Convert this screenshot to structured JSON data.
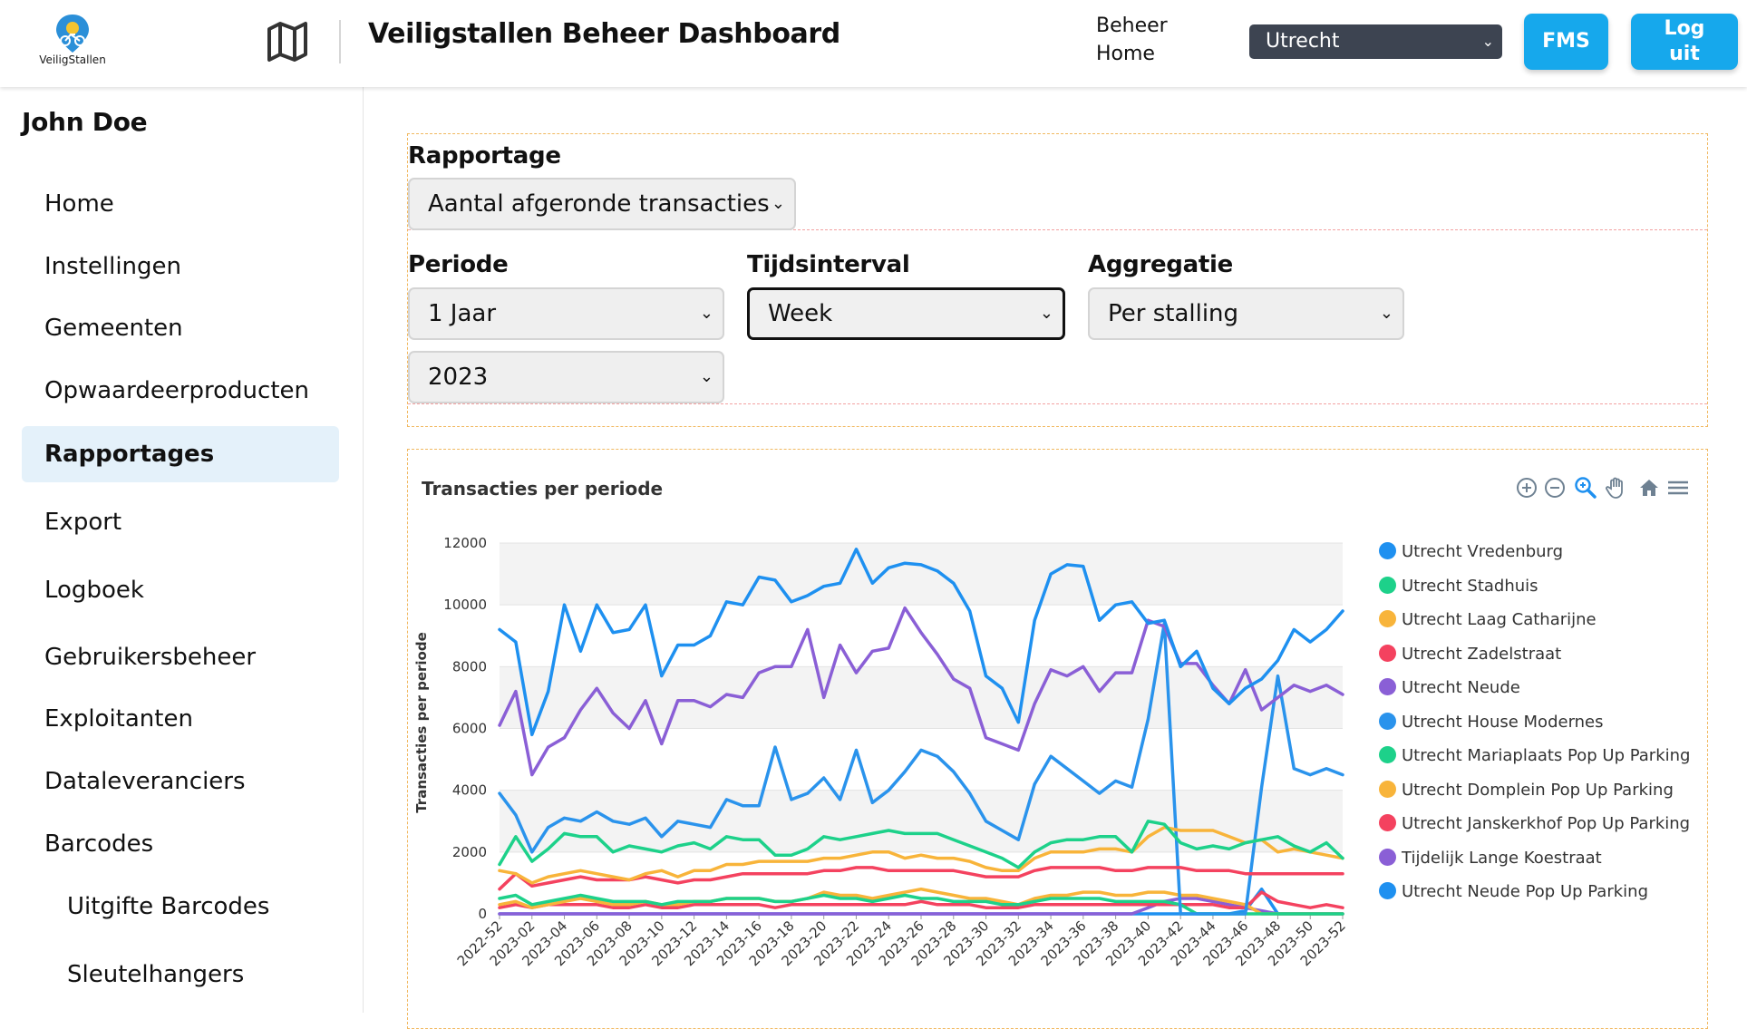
{
  "header": {
    "logo_text": "VeiligStallen",
    "title": "Veiligstallen Beheer Dashboard",
    "beheer_home_line1": "Beheer",
    "beheer_home_line2": "Home",
    "site_selected": "Utrecht",
    "fms_label": "FMS",
    "logout_line1": "Log",
    "logout_line2": "uit"
  },
  "sidebar": {
    "username": "John Doe",
    "items": [
      {
        "label": "Home"
      },
      {
        "label": "Instellingen"
      },
      {
        "label": "Gemeenten"
      },
      {
        "label": "Opwaardeerproducten"
      },
      {
        "label": "Rapportages",
        "active": true
      },
      {
        "label": "Export"
      },
      {
        "label": "Logboek"
      },
      {
        "label": "Gebruikersbeheer"
      },
      {
        "label": "Exploitanten"
      },
      {
        "label": "Dataleveranciers"
      },
      {
        "label": "Barcodes"
      },
      {
        "label": "Uitgifte Barcodes",
        "sub": true
      },
      {
        "label": "Sleutelhangers",
        "sub": true
      }
    ]
  },
  "filters": {
    "rapportage_label": "Rapportage",
    "rapportage_value": "Aantal afgeronde transacties",
    "periode_label": "Periode",
    "periode_value": "1 Jaar",
    "jaar_value": "2023",
    "tijdsinterval_label": "Tijdsinterval",
    "tijdsinterval_value": "Week",
    "aggregatie_label": "Aggregatie",
    "aggregatie_value": "Per stalling"
  },
  "toolbar_icons": [
    "zoom-in-icon",
    "zoom-out-icon",
    "selection-zoom-icon",
    "pan-icon",
    "reset-home-icon",
    "menu-icon"
  ],
  "chart_data": {
    "type": "line",
    "title": "Transacties per periode",
    "ylabel": "Transacties per periode",
    "xlabel": "",
    "ylim": [
      0,
      12000
    ],
    "yticks": [
      0,
      2000,
      4000,
      6000,
      8000,
      10000,
      12000
    ],
    "grid": true,
    "legend_position": "right",
    "x": [
      "2022-52",
      "2023-01",
      "2023-02",
      "2023-03",
      "2023-04",
      "2023-05",
      "2023-06",
      "2023-07",
      "2023-08",
      "2023-09",
      "2023-10",
      "2023-11",
      "2023-12",
      "2023-13",
      "2023-14",
      "2023-15",
      "2023-16",
      "2023-17",
      "2023-18",
      "2023-19",
      "2023-20",
      "2023-21",
      "2023-22",
      "2023-23",
      "2023-24",
      "2023-25",
      "2023-26",
      "2023-27",
      "2023-28",
      "2023-29",
      "2023-30",
      "2023-31",
      "2023-32",
      "2023-33",
      "2023-34",
      "2023-35",
      "2023-36",
      "2023-37",
      "2023-38",
      "2023-39",
      "2023-40",
      "2023-41",
      "2023-42",
      "2023-43",
      "2023-44",
      "2023-45",
      "2023-46",
      "2023-47",
      "2023-48",
      "2023-49",
      "2023-50",
      "2023-51",
      "2023-52"
    ],
    "xticks": [
      "2022-52",
      "2023-02",
      "2023-04",
      "2023-06",
      "2023-08",
      "2023-10",
      "2023-12",
      "2023-14",
      "2023-16",
      "2023-18",
      "2023-20",
      "2023-22",
      "2023-24",
      "2023-26",
      "2023-28",
      "2023-30",
      "2023-32",
      "2023-34",
      "2023-36",
      "2023-38",
      "2023-40",
      "2023-42",
      "2023-44",
      "2023-46",
      "2023-48",
      "2023-50",
      "2023-52"
    ],
    "series": [
      {
        "name": "Utrecht Vredenburg",
        "color": "#1e90f0",
        "values": [
          9200,
          8800,
          5800,
          7200,
          10000,
          8500,
          10000,
          9100,
          9200,
          10000,
          7700,
          8700,
          8700,
          9000,
          10100,
          10000,
          10900,
          10800,
          10100,
          10300,
          10600,
          10700,
          11800,
          10700,
          11200,
          11350,
          11300,
          11100,
          10700,
          9800,
          7700,
          7300,
          6200,
          9500,
          11000,
          11300,
          11250,
          9500,
          10000,
          10100,
          9400,
          9500,
          8000,
          8500,
          7300,
          6800,
          7300,
          7600,
          8200,
          9200,
          8800,
          9200,
          9800
        ]
      },
      {
        "name": "Utrecht Stadhuis",
        "color": "#1dd18a",
        "values": [
          1600,
          2500,
          1700,
          2100,
          2600,
          2500,
          2500,
          2000,
          2200,
          2100,
          2000,
          2200,
          2300,
          2100,
          2500,
          2400,
          2400,
          1900,
          1900,
          2100,
          2500,
          2400,
          2500,
          2600,
          2700,
          2600,
          2600,
          2600,
          2400,
          2200,
          2000,
          1800,
          1500,
          2000,
          2300,
          2400,
          2400,
          2500,
          2500,
          2000,
          3000,
          2900,
          2300,
          2100,
          2200,
          2100,
          2300,
          2400,
          2500,
          2200,
          2000,
          2300,
          1800
        ]
      },
      {
        "name": "Utrecht Laag Catharijne",
        "color": "#f8b43a",
        "values": [
          1400,
          1300,
          1000,
          1200,
          1300,
          1400,
          1300,
          1200,
          1100,
          1300,
          1400,
          1200,
          1400,
          1400,
          1600,
          1600,
          1700,
          1700,
          1700,
          1700,
          1800,
          1800,
          1900,
          2000,
          2000,
          1800,
          1900,
          1800,
          1800,
          1700,
          1500,
          1400,
          1400,
          1800,
          2000,
          2000,
          2000,
          2100,
          2100,
          2000,
          2500,
          2800,
          2700,
          2700,
          2700,
          2500,
          2300,
          2400,
          2000,
          2100,
          2000,
          1900,
          1800
        ]
      },
      {
        "name": "Utrecht Zadelstraat",
        "color": "#f4425f",
        "values": [
          800,
          1300,
          900,
          1000,
          1100,
          1200,
          1100,
          1100,
          1100,
          1200,
          1100,
          1000,
          1100,
          1100,
          1200,
          1300,
          1300,
          1300,
          1300,
          1300,
          1400,
          1400,
          1500,
          1500,
          1400,
          1400,
          1400,
          1400,
          1400,
          1300,
          1200,
          1200,
          1200,
          1400,
          1500,
          1500,
          1500,
          1500,
          1400,
          1400,
          1500,
          1500,
          1500,
          1400,
          1400,
          1400,
          1300,
          1300,
          1300,
          1300,
          1300,
          1300,
          1300
        ]
      },
      {
        "name": "Utrecht Neude",
        "color": "#8a5fd6",
        "values": [
          6100,
          7200,
          4500,
          5400,
          5700,
          6600,
          7300,
          6500,
          6000,
          6900,
          5500,
          6900,
          6900,
          6700,
          7100,
          7000,
          7800,
          8000,
          8000,
          9200,
          7000,
          8700,
          7800,
          8500,
          8600,
          9900,
          9100,
          8400,
          7600,
          7300,
          5700,
          5500,
          5300,
          6800,
          7900,
          7700,
          8000,
          7200,
          7800,
          7800,
          9500,
          9300,
          8100,
          8100,
          7400,
          6800,
          7900,
          6600,
          7000,
          7400,
          7200,
          7400,
          7100
        ]
      },
      {
        "name": "Utrecht House Modernes",
        "color": "#2a93ec",
        "values": [
          3900,
          3200,
          2000,
          2800,
          3100,
          3000,
          3300,
          3000,
          2900,
          3100,
          2500,
          3000,
          2900,
          2800,
          3700,
          3500,
          3500,
          5400,
          3700,
          3900,
          4400,
          3700,
          5300,
          3600,
          4000,
          4600,
          5300,
          5100,
          4600,
          3900,
          3000,
          2700,
          2400,
          4200,
          5100,
          4700,
          4300,
          3900,
          4300,
          4100,
          6300,
          9400,
          0,
          0,
          0,
          0,
          0,
          4100,
          7700,
          4700,
          4500,
          4700,
          4500
        ]
      },
      {
        "name": "Utrecht Mariaplaats Pop Up Parking",
        "color": "#1dd18a",
        "values": [
          500,
          600,
          300,
          400,
          500,
          600,
          500,
          400,
          400,
          400,
          300,
          400,
          400,
          400,
          500,
          500,
          500,
          400,
          400,
          500,
          600,
          500,
          500,
          400,
          500,
          600,
          500,
          500,
          400,
          400,
          400,
          300,
          300,
          400,
          500,
          500,
          500,
          500,
          400,
          400,
          400,
          400,
          300,
          0,
          0,
          0,
          0,
          0,
          0,
          0,
          0,
          0,
          0
        ]
      },
      {
        "name": "Utrecht Domplein Pop Up Parking",
        "color": "#f8b43a",
        "values": [
          300,
          400,
          200,
          300,
          400,
          500,
          400,
          300,
          300,
          400,
          300,
          300,
          400,
          400,
          500,
          500,
          500,
          400,
          400,
          500,
          700,
          600,
          600,
          500,
          600,
          700,
          800,
          700,
          600,
          500,
          500,
          400,
          300,
          500,
          600,
          600,
          700,
          700,
          600,
          600,
          700,
          700,
          600,
          600,
          500,
          400,
          300,
          0,
          0,
          0,
          0,
          0,
          0
        ]
      },
      {
        "name": "Utrecht Janskerkhof Pop Up Parking",
        "color": "#f4425f",
        "values": [
          200,
          300,
          200,
          300,
          300,
          300,
          300,
          200,
          200,
          300,
          200,
          200,
          300,
          300,
          300,
          300,
          300,
          200,
          300,
          300,
          300,
          300,
          300,
          300,
          300,
          300,
          400,
          300,
          300,
          300,
          200,
          200,
          200,
          300,
          300,
          300,
          300,
          300,
          300,
          300,
          300,
          300,
          300,
          300,
          300,
          200,
          200,
          700,
          400,
          300,
          200,
          300,
          200
        ]
      },
      {
        "name": "Tijdelijk Lange Koestraat",
        "color": "#8a5fd6",
        "values": [
          0,
          0,
          0,
          0,
          0,
          0,
          0,
          0,
          0,
          0,
          0,
          0,
          0,
          0,
          0,
          0,
          0,
          0,
          0,
          0,
          0,
          0,
          0,
          0,
          0,
          0,
          0,
          0,
          0,
          0,
          0,
          0,
          0,
          0,
          0,
          0,
          0,
          0,
          0,
          0,
          200,
          400,
          500,
          500,
          400,
          300,
          200,
          100,
          0,
          0,
          0,
          0,
          0
        ]
      },
      {
        "name": "Utrecht Neude Pop Up Parking",
        "color": "#1e90f0",
        "values": [
          0,
          0,
          0,
          0,
          0,
          0,
          0,
          0,
          0,
          0,
          0,
          0,
          0,
          0,
          0,
          0,
          0,
          0,
          0,
          0,
          0,
          0,
          0,
          0,
          0,
          0,
          0,
          0,
          0,
          0,
          0,
          0,
          0,
          0,
          0,
          0,
          0,
          0,
          0,
          0,
          0,
          0,
          0,
          0,
          0,
          0,
          100,
          800,
          0,
          0,
          0,
          0,
          0
        ]
      }
    ]
  }
}
